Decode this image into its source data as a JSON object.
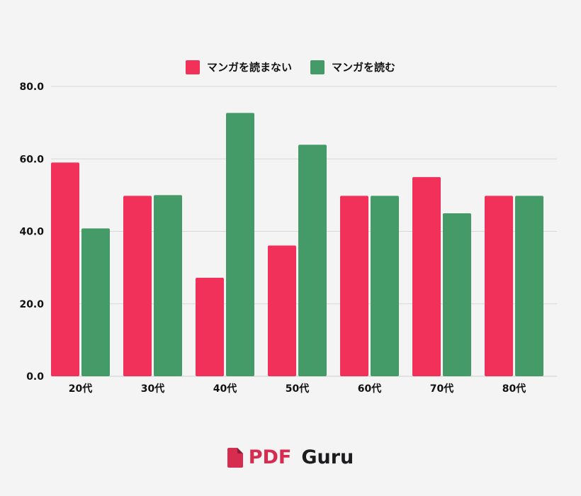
{
  "colors": {
    "series_0": "#f2315a",
    "series_1": "#449b68",
    "brand_red": "#d52c50",
    "brand_dark": "#1d1d1f",
    "grid": "#d8d8d8"
  },
  "chart_data": {
    "type": "bar",
    "title": "",
    "xlabel": "",
    "ylabel": "",
    "categories": [
      "20代",
      "30代",
      "40代",
      "50代",
      "60代",
      "70代",
      "80代"
    ],
    "series": [
      {
        "name": "マンガを読まない",
        "values": [
          59,
          49.8,
          27.2,
          36.1,
          49.8,
          55,
          49.8
        ]
      },
      {
        "name": "マンガを読む",
        "values": [
          40.8,
          50,
          72.7,
          63.9,
          49.8,
          45,
          49.8
        ]
      }
    ],
    "ylim": [
      0,
      80
    ],
    "yticks": [
      "0.0",
      "20.0",
      "40.0",
      "60.0",
      "80.0"
    ],
    "ytick_values": [
      0,
      20,
      40,
      60,
      80
    ],
    "grid": true,
    "legend_position": "top-center"
  },
  "brand": {
    "pdf": "PDF",
    "guru": "Guru"
  }
}
